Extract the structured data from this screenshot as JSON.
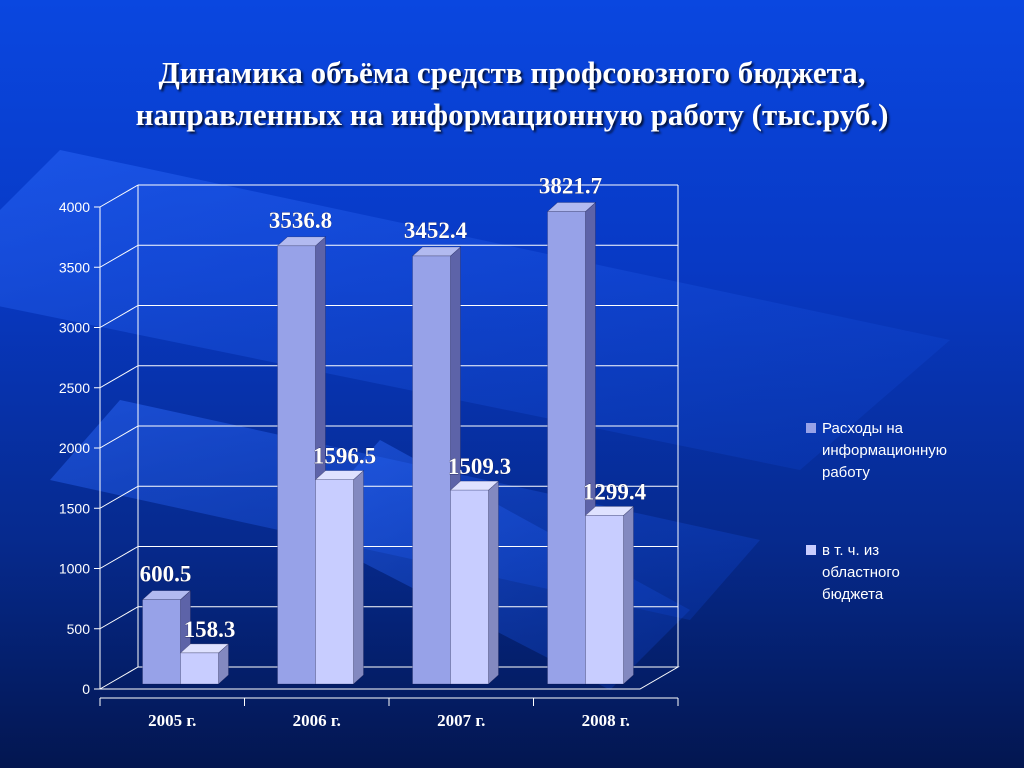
{
  "colors": {
    "series1": "#97a2e8",
    "series1_dark": "#5d63a8",
    "series1_top": "#b2baf0",
    "series2": "#c8cdff",
    "series2_dark": "#8389c0",
    "series2_top": "#dfe2ff",
    "gridline": "#ffffff"
  },
  "chart_data": {
    "type": "bar",
    "title": "Динамика объёма средств профсоюзного бюджета, направленных на информационную работу (тыс.руб.)",
    "title_lines": [
      "Динамика объёма средств профсоюзного бюджета,",
      "направленных на информационную работу (тыс.руб.)"
    ],
    "categories": [
      "2005 г.",
      "2006 г.",
      "2007 г.",
      "2008 г."
    ],
    "series": [
      {
        "name": "Расходы на информационную работу",
        "name_lines": [
          "Расходы на",
          "информационную",
          "работу"
        ],
        "values": [
          600.5,
          3536.8,
          3452.4,
          3821.7
        ],
        "labels": [
          "600.5",
          "3536.8",
          "3452.4",
          "3821.7"
        ]
      },
      {
        "name": "в т. ч. из областного бюджета",
        "name_lines": [
          "в т. ч. из",
          "областного",
          "бюджета"
        ],
        "values": [
          158.3,
          1596.5,
          1509.3,
          1299.4
        ],
        "labels": [
          "158.3",
          "1596.5",
          "1509.3",
          "1299.4"
        ]
      }
    ],
    "yticks": [
      "0",
      "500",
      "1000",
      "1500",
      "2000",
      "2500",
      "3000",
      "3500",
      "4000"
    ],
    "ylim": [
      0,
      4000
    ],
    "xlabel": "",
    "ylabel": "",
    "grid": true,
    "legend_position": "right",
    "style": "3d-clustered-columns"
  }
}
